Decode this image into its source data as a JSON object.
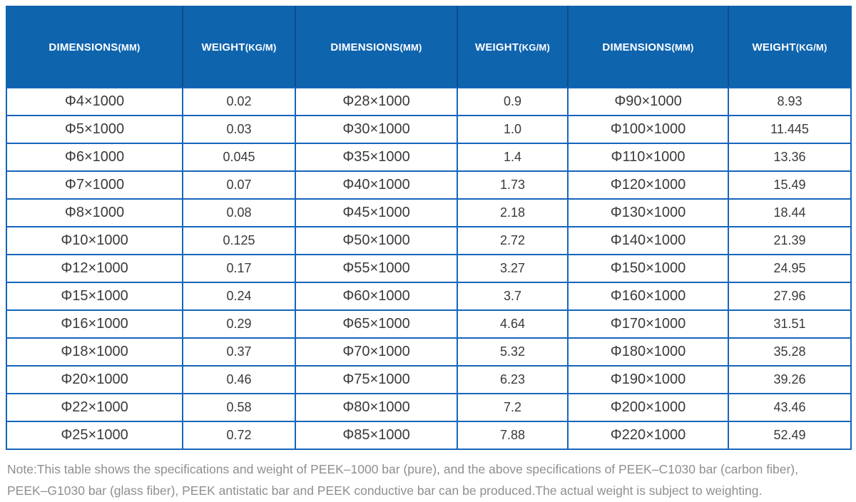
{
  "colors": {
    "header_bg": "#0f64ae",
    "header_divider": "#0b4e8d",
    "header_text": "#ffffff",
    "grid_border": "#1565bb",
    "cell_text": "#3a3a3a",
    "note_text": "#8f8f8f"
  },
  "table": {
    "columns": [
      {
        "label": "DIMENSIONS",
        "unit": "(MM)"
      },
      {
        "label": "WEIGHT",
        "unit": "(KG/M)"
      },
      {
        "label": "DIMENSIONS",
        "unit": "(MM)"
      },
      {
        "label": "WEIGHT",
        "unit": "(KG/M)"
      },
      {
        "label": "DIMENSIONS",
        "unit": "(MM)"
      },
      {
        "label": "WEIGHT",
        "unit": "(KG/M)"
      }
    ],
    "rows": [
      [
        "Φ4×1000",
        "0.02",
        "Φ28×1000",
        "0.9",
        "Φ90×1000",
        "8.93"
      ],
      [
        "Φ5×1000",
        "0.03",
        "Φ30×1000",
        "1.0",
        "Φ100×1000",
        "11.445"
      ],
      [
        "Φ6×1000",
        "0.045",
        "Φ35×1000",
        "1.4",
        "Φ110×1000",
        "13.36"
      ],
      [
        "Φ7×1000",
        "0.07",
        "Φ40×1000",
        "1.73",
        "Φ120×1000",
        "15.49"
      ],
      [
        "Φ8×1000",
        "0.08",
        "Φ45×1000",
        "2.18",
        "Φ130×1000",
        "18.44"
      ],
      [
        "Φ10×1000",
        "0.125",
        "Φ50×1000",
        "2.72",
        "Φ140×1000",
        "21.39"
      ],
      [
        "Φ12×1000",
        "0.17",
        "Φ55×1000",
        "3.27",
        "Φ150×1000",
        "24.95"
      ],
      [
        "Φ15×1000",
        "0.24",
        "Φ60×1000",
        "3.7",
        "Φ160×1000",
        "27.96"
      ],
      [
        "Φ16×1000",
        "0.29",
        "Φ65×1000",
        "4.64",
        "Φ170×1000",
        "31.51"
      ],
      [
        "Φ18×1000",
        "0.37",
        "Φ70×1000",
        "5.32",
        "Φ180×1000",
        "35.28"
      ],
      [
        "Φ20×1000",
        "0.46",
        "Φ75×1000",
        "6.23",
        "Φ190×1000",
        "39.26"
      ],
      [
        "Φ22×1000",
        "0.58",
        "Φ80×1000",
        "7.2",
        "Φ200×1000",
        "43.46"
      ],
      [
        "Φ25×1000",
        "0.72",
        "Φ85×1000",
        "7.88",
        "Φ220×1000",
        "52.49"
      ]
    ]
  },
  "note": {
    "line1": "Note:This table shows the specifications and weight of PEEK–1000 bar (pure), and the above specifications of PEEK–C1030 bar (carbon fiber),",
    "line2": "PEEK–G1030 bar (glass fiber), PEEK antistatic bar and PEEK conductive bar can be produced.The actual weight is subject to weighting."
  }
}
